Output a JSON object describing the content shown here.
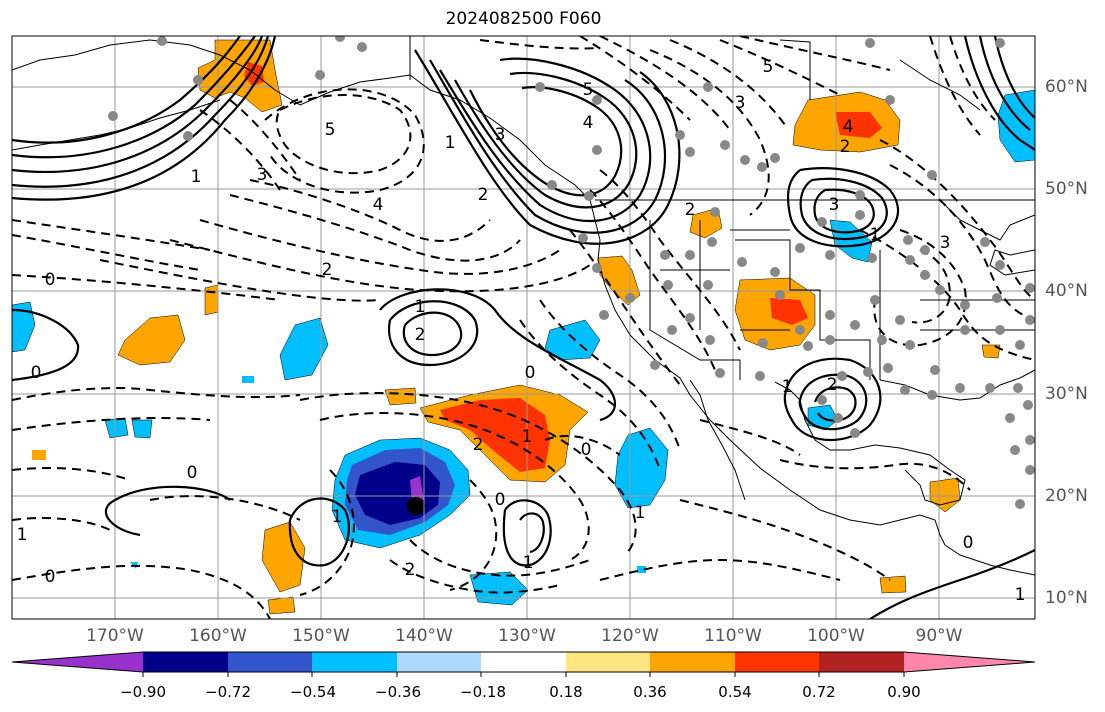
{
  "title": "2024082500 F060",
  "longitude_labels": [
    "170°W",
    "160°W",
    "150°W",
    "140°W",
    "130°W",
    "120°W",
    "110°W",
    "100°W",
    "90°W"
  ],
  "latitude_labels": [
    "60°N",
    "50°N",
    "40°N",
    "30°N",
    "20°N",
    "10°N"
  ],
  "colorbar": {
    "tick_labels": [
      "−0.90",
      "−0.72",
      "−0.54",
      "−0.36",
      "−0.18",
      "0.18",
      "0.36",
      "0.54",
      "0.72",
      "0.90"
    ],
    "colors": [
      "#9932cc",
      "#00008b",
      "#3355cc",
      "#00bfff",
      "#add8ff",
      "#ffffff",
      "#ffe680",
      "#ffa500",
      "#ff3300",
      "#b22222",
      "#ff88aa"
    ]
  },
  "contour_labels": [
    "5",
    "5",
    "4",
    "3",
    "2",
    "1",
    "0",
    "0",
    "1",
    "2",
    "3",
    "4",
    "5",
    "1",
    "2",
    "0",
    "0",
    "1",
    "2",
    "1",
    "1",
    "0",
    "2",
    "0",
    "1",
    "1",
    "2",
    "3",
    "3",
    "4",
    "1",
    "2",
    "0",
    "1",
    "2",
    "3",
    "0",
    "1"
  ]
}
